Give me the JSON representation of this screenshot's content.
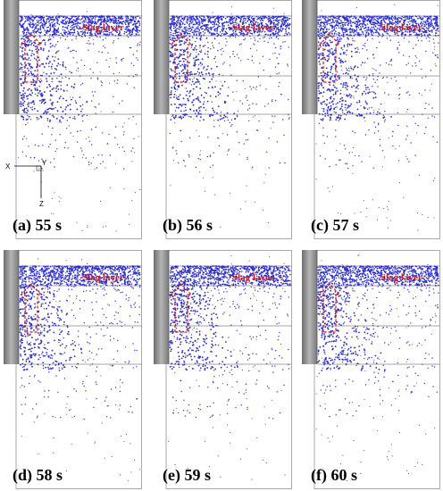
{
  "panels": [
    {
      "label": "(a) 55 s",
      "slag_label": "Slag layer"
    },
    {
      "label": "(b) 56 s",
      "slag_label": "Slag layer"
    },
    {
      "label": "(c) 57 s",
      "slag_label": "Slag layer"
    },
    {
      "label": "(d) 58 s",
      "slag_label": "Slag layer"
    },
    {
      "label": "(e) 59 s",
      "slag_label": "Slag layer"
    },
    {
      "label": "(f) 60 s",
      "slag_label": "Slag layer"
    }
  ],
  "axes": {
    "x": "X",
    "y": "Y",
    "z": "Z"
  }
}
